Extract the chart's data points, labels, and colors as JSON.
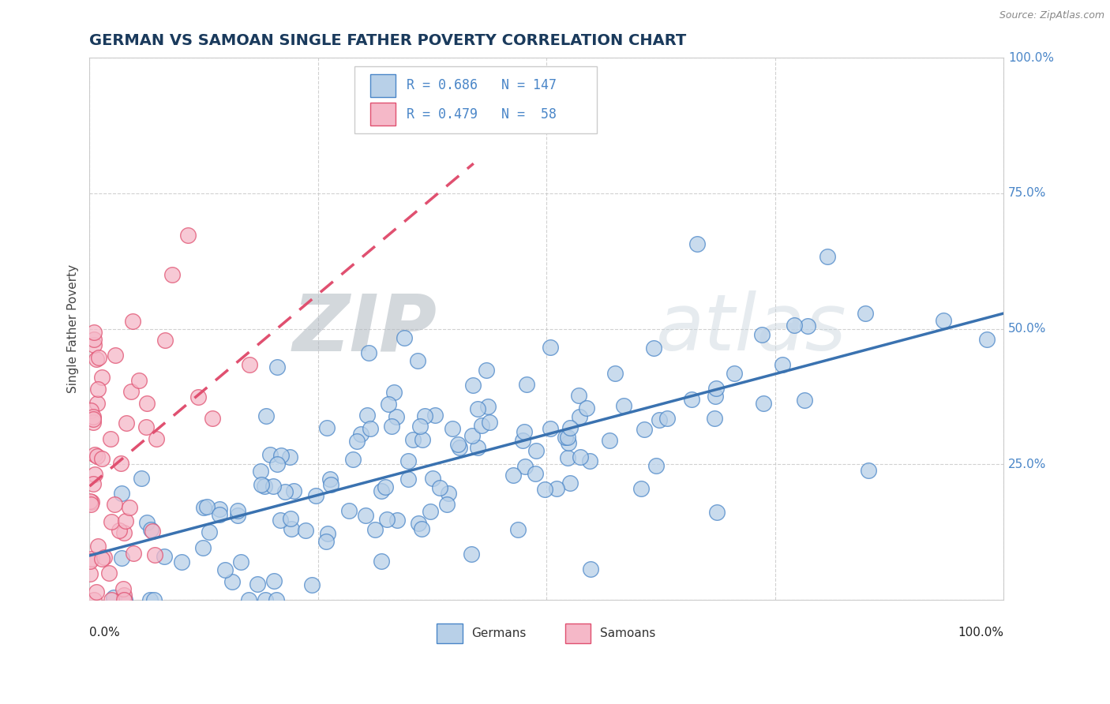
{
  "title": "GERMAN VS SAMOAN SINGLE FATHER POVERTY CORRELATION CHART",
  "source": "Source: ZipAtlas.com",
  "ylabel": "Single Father Poverty",
  "german_R": 0.686,
  "german_N": 147,
  "samoan_R": 0.479,
  "samoan_N": 58,
  "german_color": "#b8d0e8",
  "german_edge_color": "#4a86c8",
  "german_line_color": "#3a72b0",
  "samoan_color": "#f5b8c8",
  "samoan_edge_color": "#e05070",
  "samoan_line_color": "#e05070",
  "background_color": "#ffffff",
  "watermark_zip": "ZIP",
  "watermark_atlas": "atlas",
  "title_color": "#1a3a5c",
  "title_fontsize": 14,
  "axis_label_color": "#4a86c8",
  "grid_color": "#cccccc",
  "legend_box_color": "#eeeeee"
}
